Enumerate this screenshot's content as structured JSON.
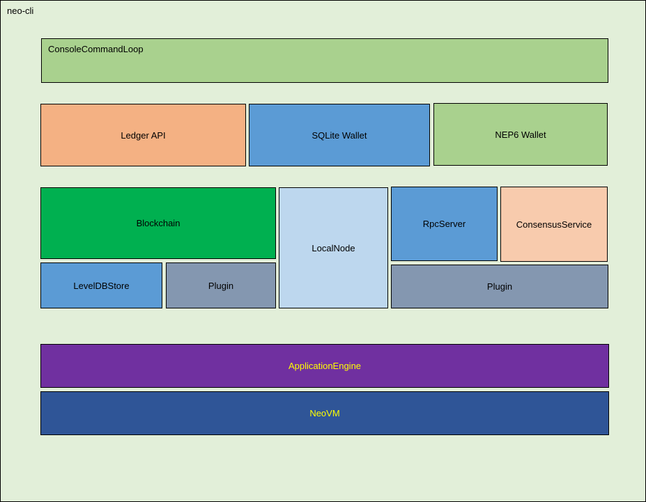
{
  "diagram": {
    "title": "neo-cli",
    "background_color": "#e2efd9",
    "boxes": {
      "console_command_loop": {
        "label": "ConsoleCommandLoop",
        "color": "#a9d18e",
        "text_color": "#000000"
      },
      "ledger_api": {
        "label": "Ledger API",
        "color": "#f4b183",
        "text_color": "#000000"
      },
      "sqlite_wallet": {
        "label": "SQLite Wallet",
        "color": "#5b9bd5",
        "text_color": "#000000"
      },
      "nep6_wallet": {
        "label": "NEP6 Wallet",
        "color": "#a9d18e",
        "text_color": "#000000"
      },
      "blockchain": {
        "label": "Blockchain",
        "color": "#00b050",
        "text_color": "#000000"
      },
      "leveldb_store": {
        "label": "LevelDBStore",
        "color": "#5b9bd5",
        "text_color": "#000000"
      },
      "plugin_left": {
        "label": "Plugin",
        "color": "#8497b0",
        "text_color": "#000000"
      },
      "local_node": {
        "label": "LocalNode",
        "color": "#bdd7ee",
        "text_color": "#000000"
      },
      "rpc_server": {
        "label": "RpcServer",
        "color": "#5b9bd5",
        "text_color": "#000000"
      },
      "consensus_service": {
        "label": "ConsensusService",
        "color": "#f8cbad",
        "text_color": "#000000"
      },
      "plugin_right": {
        "label": "Plugin",
        "color": "#8497b0",
        "text_color": "#000000"
      },
      "application_engine": {
        "label": "ApplicationEngine",
        "color": "#7030a0",
        "text_color": "#ffff00"
      },
      "neovm": {
        "label": "NeoVM",
        "color": "#2f5597",
        "text_color": "#ffff00"
      }
    }
  }
}
